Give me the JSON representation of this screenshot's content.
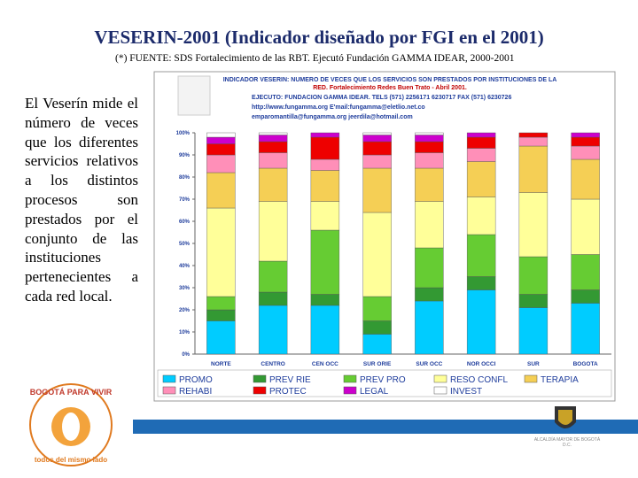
{
  "title": "VESERIN-2001 (Indicador diseñado por FGI en el 2001)",
  "source": "(*) FUENTE: SDS Fortalecimiento de las RBT. Ejecutó Fundación GAMMA IDEAR, 2000-2001",
  "body": "El Veserín mide el número de veces que los diferentes servicios relativos a los distintos procesos son prestados por el conjunto de las instituciones pertenecientes a cada red local.",
  "logo_top": "BOGOTÁ PARA VIVIR",
  "logo_bottom": "todos del mismo lado",
  "crest_caption": "ALCALDÍA MAYOR DE BOGOTÁ D.C.",
  "chart_data": {
    "type": "stacked_bar",
    "title": "INDICADOR VESERIN: NUMERO DE VECES QUE LOS SERVICIOS SON PRESTADOS POR INSTITUCIONES DE LA",
    "subtitle": "RED. Fortalecimiento Redes Buen Trato - Abril 2001.",
    "annotations": [
      "EJECUTO: FUNDACION GAMMA IDEAR. TELS (571) 2256171 6230717 FAX (571) 6230726",
      "http://www.fungamma.org E'mail:fungamma@eletlio.net.co",
      "emparomantilla@fungamma.org jeerdila@hotmail.com"
    ],
    "categories": [
      "NORTE",
      "CENTRO",
      "CEN OCC",
      "SUR ORIE",
      "SUR OCC",
      "NOR OCCI",
      "SUR",
      "BOGOTA"
    ],
    "series": [
      {
        "name": "PROMO",
        "color": "#00ccff",
        "values": [
          15,
          22,
          22,
          9,
          24,
          29,
          21,
          23
        ]
      },
      {
        "name": "PREV RIE",
        "color": "#339933",
        "values": [
          5,
          6,
          5,
          6,
          6,
          6,
          6,
          6
        ]
      },
      {
        "name": "PREV PRO",
        "color": "#66cc33",
        "values": [
          6,
          14,
          29,
          11,
          18,
          19,
          17,
          16
        ]
      },
      {
        "name": "RESO CONFL",
        "color": "#ffff99",
        "values": [
          40,
          27,
          13,
          38,
          21,
          17,
          29,
          25
        ]
      },
      {
        "name": "TERAPIA",
        "color": "#f5cf55",
        "values": [
          16,
          15,
          14,
          20,
          15,
          16,
          21,
          18
        ]
      },
      {
        "name": "REHABI",
        "color": "#ff8fb8",
        "values": [
          8,
          7,
          5,
          6,
          7,
          6,
          4,
          6
        ]
      },
      {
        "name": "PROTEC",
        "color": "#ee0000",
        "values": [
          5,
          5,
          10,
          6,
          5,
          5,
          2,
          4
        ]
      },
      {
        "name": "LEGAL",
        "color": "#cc00cc",
        "values": [
          3,
          3,
          2,
          3,
          3,
          2,
          0,
          2
        ]
      },
      {
        "name": "INVEST",
        "color": "#ffffff",
        "values": [
          2,
          1,
          0,
          1,
          1,
          0,
          0,
          0
        ]
      }
    ],
    "ylim": [
      0,
      100
    ],
    "yticks": [
      {
        "value": 0,
        "label": "0%"
      },
      {
        "value": 10,
        "label": "10%"
      },
      {
        "value": 20,
        "label": "20%"
      },
      {
        "value": 30,
        "label": "30%"
      },
      {
        "value": 40,
        "label": "40%"
      },
      {
        "value": 50,
        "label": "50%"
      },
      {
        "value": 60,
        "label": "60%"
      },
      {
        "value": 70,
        "label": "70%"
      },
      {
        "value": 80,
        "label": "80%"
      },
      {
        "value": 90,
        "label": "90%"
      },
      {
        "value": 100,
        "label": "100%"
      }
    ]
  }
}
